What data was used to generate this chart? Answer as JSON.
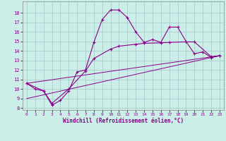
{
  "xlabel": "Windchill (Refroidissement éolien,°C)",
  "background_color": "#cceee8",
  "grid_color": "#aacccc",
  "line_color": "#880088",
  "xlim": [
    -0.5,
    23.5
  ],
  "ylim": [
    7.8,
    19.2
  ],
  "yticks": [
    8,
    9,
    10,
    11,
    12,
    13,
    14,
    15,
    16,
    17,
    18
  ],
  "xticks": [
    0,
    1,
    2,
    3,
    4,
    5,
    6,
    7,
    8,
    9,
    10,
    11,
    12,
    13,
    14,
    15,
    16,
    17,
    18,
    19,
    20,
    21,
    22,
    23
  ],
  "series1_x": [
    0,
    1,
    2,
    3,
    4,
    5,
    6,
    7,
    8,
    9,
    10,
    11,
    12,
    13,
    14,
    15,
    16,
    17,
    18,
    19,
    20,
    21,
    22,
    23
  ],
  "series1_y": [
    10.6,
    10.0,
    9.8,
    8.3,
    8.8,
    9.8,
    11.8,
    12.0,
    14.9,
    17.3,
    18.3,
    18.3,
    17.5,
    16.0,
    14.9,
    15.2,
    14.9,
    16.5,
    16.5,
    15.0,
    13.7,
    13.9,
    13.3,
    13.5
  ],
  "series2_x": [
    0,
    2,
    3,
    5,
    7,
    8,
    10,
    11,
    13,
    14,
    16,
    17,
    19,
    20,
    22,
    23
  ],
  "series2_y": [
    10.6,
    9.8,
    8.5,
    10.0,
    11.9,
    13.2,
    14.2,
    14.5,
    14.7,
    14.8,
    14.85,
    14.9,
    14.95,
    14.95,
    13.4,
    13.5
  ],
  "series3_x": [
    0,
    23
  ],
  "series3_y": [
    10.6,
    13.5
  ],
  "series4_x": [
    0,
    23
  ],
  "series4_y": [
    9.0,
    13.5
  ]
}
